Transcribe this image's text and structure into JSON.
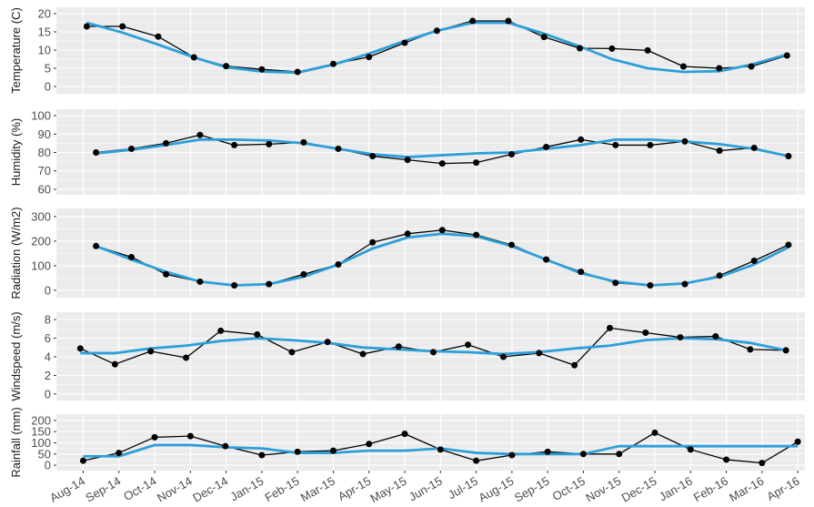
{
  "chart_data": [
    {
      "type": "line",
      "y_label": "Temperature (C)",
      "x": [
        0.1,
        1.1,
        2.1,
        3.1,
        4.0,
        5.0,
        6.0,
        7.0,
        8.0,
        9.0,
        9.9,
        10.9,
        11.9,
        12.9,
        13.9,
        14.8,
        15.8,
        16.8,
        17.8,
        18.7,
        19.7
      ],
      "series": [
        {
          "color": "#000000",
          "marker": true,
          "values": [
            16.5,
            16.5,
            13.7,
            8,
            5.6,
            4.7,
            4,
            6.2,
            8.1,
            12,
            15.3,
            18,
            18,
            13.6,
            10.5,
            10.4,
            9.9,
            5.5,
            5,
            5.5,
            8.5
          ]
        },
        {
          "color": "#2C9FD9",
          "marker": false,
          "values": [
            17.5,
            14.8,
            11.5,
            8,
            5.3,
            4.1,
            3.8,
            6,
            9,
            12.5,
            15.3,
            17.5,
            17.5,
            14.5,
            11,
            7.5,
            5,
            4,
            4.2,
            6,
            8.8
          ]
        }
      ],
      "xlim": [
        -0.75,
        20.2
      ],
      "xticks": [
        0,
        1,
        2,
        3,
        4,
        5,
        6,
        7,
        8,
        9,
        10,
        11,
        12,
        13,
        14,
        15,
        16,
        17,
        18,
        19,
        20
      ],
      "ylim": [
        -2,
        21.75
      ],
      "yticks": [
        0,
        5,
        10,
        15,
        20
      ],
      "grid": true
    },
    {
      "type": "line",
      "y_label": "Humidity (%)",
      "x": [
        0.36,
        1.35,
        2.32,
        3.27,
        4.23,
        5.2,
        6.17,
        7.14,
        8.1,
        9.08,
        10.05,
        11.0,
        11.99,
        12.96,
        13.93,
        14.9,
        15.87,
        16.84,
        17.81,
        18.78,
        19.74
      ],
      "series": [
        {
          "color": "#000000",
          "marker": true,
          "values": [
            80,
            82,
            85,
            89.5,
            84,
            84.5,
            85.5,
            82,
            78,
            76,
            74,
            74.5,
            79,
            83,
            87,
            84,
            84,
            86,
            81,
            82.5,
            78
          ]
        },
        {
          "color": "#2C9FD9",
          "marker": false,
          "values": [
            79.5,
            81.5,
            84,
            87,
            87,
            86.5,
            85,
            82,
            79,
            77.5,
            78.5,
            79.5,
            80,
            82,
            84,
            87,
            87,
            86,
            84.5,
            82,
            78
          ]
        }
      ],
      "xlim": [
        -0.75,
        20.2
      ],
      "xticks": [
        0,
        1,
        2,
        3,
        4,
        5,
        6,
        7,
        8,
        9,
        10,
        11,
        12,
        13,
        14,
        15,
        16,
        17,
        18,
        19,
        20
      ],
      "ylim": [
        57,
        103.5
      ],
      "yticks": [
        60,
        70,
        80,
        90,
        100
      ],
      "grid": true
    },
    {
      "type": "line",
      "y_label": "Radiation (W/m2)",
      "x": [
        0.36,
        1.35,
        2.32,
        3.27,
        4.23,
        5.2,
        6.17,
        7.14,
        8.1,
        9.08,
        10.05,
        11.0,
        11.99,
        12.96,
        13.93,
        14.9,
        15.87,
        16.84,
        17.81,
        18.78,
        19.74
      ],
      "series": [
        {
          "color": "#000000",
          "marker": true,
          "values": [
            180,
            135,
            65,
            35,
            20,
            25,
            65,
            105,
            195,
            230,
            245,
            225,
            185,
            125,
            75,
            30,
            20,
            25,
            60,
            120,
            185
          ]
        },
        {
          "color": "#2C9FD9",
          "marker": false,
          "values": [
            180,
            125,
            75,
            35,
            20,
            25,
            55,
            105,
            170,
            215,
            230,
            220,
            180,
            125,
            70,
            35,
            20,
            28,
            55,
            105,
            175
          ]
        }
      ],
      "xlim": [
        -0.75,
        20.2
      ],
      "xticks": [
        0,
        1,
        2,
        3,
        4,
        5,
        6,
        7,
        8,
        9,
        10,
        11,
        12,
        13,
        14,
        15,
        16,
        17,
        18,
        19,
        20
      ],
      "ylim": [
        -30,
        333
      ],
      "yticks": [
        0,
        100,
        200,
        300
      ],
      "grid": true
    },
    {
      "type": "line",
      "y_label": "Windspeed (m/s)",
      "x": [
        -0.08,
        0.89,
        1.89,
        2.88,
        3.85,
        4.87,
        5.84,
        6.84,
        7.83,
        8.83,
        9.8,
        10.77,
        11.76,
        12.76,
        13.75,
        14.74,
        15.74,
        16.71,
        17.7,
        18.67,
        19.67
      ],
      "series": [
        {
          "color": "#000000",
          "marker": true,
          "values": [
            4.9,
            3.2,
            4.6,
            3.9,
            6.8,
            6.4,
            4.5,
            5.6,
            4.3,
            5.1,
            4.5,
            5.3,
            4.0,
            4.4,
            3.1,
            7.1,
            6.6,
            6.1,
            6.2,
            4.8,
            4.7
          ]
        },
        {
          "color": "#2C9FD9",
          "marker": false,
          "values": [
            4.4,
            4.4,
            4.9,
            5.2,
            5.7,
            6.0,
            5.8,
            5.5,
            5.0,
            4.8,
            4.6,
            4.5,
            4.3,
            4.5,
            4.9,
            5.2,
            5.8,
            6.0,
            5.9,
            5.5,
            4.7
          ]
        }
      ],
      "xlim": [
        -0.75,
        20.2
      ],
      "xticks": [
        0,
        1,
        2,
        3,
        4,
        5,
        6,
        7,
        8,
        9,
        10,
        11,
        12,
        13,
        14,
        15,
        16,
        17,
        18,
        19,
        20
      ],
      "ylim": [
        -0.7,
        8.8
      ],
      "yticks": [
        0,
        2,
        4,
        6,
        8
      ],
      "grid": true
    },
    {
      "type": "line",
      "y_label": "Rainfall (mm)",
      "x": [
        0,
        1,
        2,
        3,
        3.98,
        5,
        6,
        7,
        8,
        9,
        10,
        11,
        12,
        13,
        14,
        15,
        16,
        17,
        18,
        19,
        20
      ],
      "series": [
        {
          "color": "#000000",
          "marker": true,
          "values": [
            20,
            55,
            125,
            130,
            85,
            45,
            60,
            65,
            95,
            140,
            70,
            20,
            45,
            60,
            50,
            50,
            145,
            70,
            25,
            10,
            105
          ]
        },
        {
          "color": "#2C9FD9",
          "marker": false,
          "values": [
            40,
            40,
            90,
            90,
            80,
            75,
            55,
            55,
            65,
            65,
            75,
            55,
            50,
            50,
            50,
            85,
            85,
            85,
            85,
            85,
            85
          ]
        }
      ],
      "xlim": [
        -0.75,
        20.2
      ],
      "xticks": [
        {
          "value": 0,
          "label": "Aug-14"
        },
        {
          "value": 1,
          "label": "Sep-14"
        },
        {
          "value": 2,
          "label": "Oct-14"
        },
        {
          "value": 3,
          "label": "Nov-14"
        },
        {
          "value": 4,
          "label": "Dec-14"
        },
        {
          "value": 5,
          "label": "Jan-15"
        },
        {
          "value": 6,
          "label": "Feb-15"
        },
        {
          "value": 7,
          "label": "Mar-15"
        },
        {
          "value": 8,
          "label": "Apr-15"
        },
        {
          "value": 9,
          "label": "May-15"
        },
        {
          "value": 10,
          "label": "Jun-15"
        },
        {
          "value": 11,
          "label": "Jul-15"
        },
        {
          "value": 12,
          "label": "Aug-15"
        },
        {
          "value": 13,
          "label": "Sep-15"
        },
        {
          "value": 14,
          "label": "Oct-15"
        },
        {
          "value": 15,
          "label": "Nov-15"
        },
        {
          "value": 16,
          "label": "Dec-15"
        },
        {
          "value": 17,
          "label": "Jan-16"
        },
        {
          "value": 18,
          "label": "Feb-16"
        },
        {
          "value": 19,
          "label": "Mar-16"
        },
        {
          "value": 20,
          "label": "Apr-16"
        }
      ],
      "ylim": [
        -24,
        228
      ],
      "yticks": [
        0,
        50,
        100,
        150,
        200
      ],
      "grid": true
    }
  ]
}
